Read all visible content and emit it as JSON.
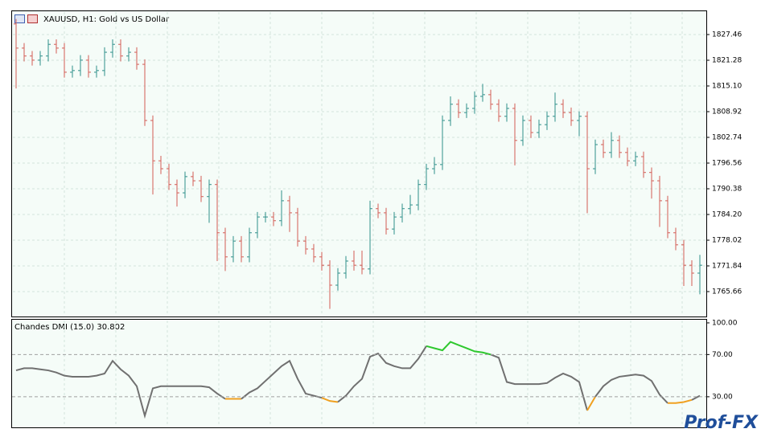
{
  "chart_data": [
    {
      "type": "ohlc",
      "title": "XAUUSD, H1:  Gold vs US Dollar",
      "open": [
        1830.0,
        1824.2,
        1822.3,
        1821.3,
        1822.3,
        1825.1,
        1824.2,
        1818.4,
        1818.8,
        1821.3,
        1818.4,
        1818.8,
        1823.2,
        1825.1,
        1822.3,
        1823.2,
        1820.3,
        1806.8,
        1797.1,
        1795.2,
        1791.4,
        1789.4,
        1793.3,
        1792.3,
        1788.5,
        1791.4,
        1779.8,
        1774.0,
        1777.8,
        1774.0,
        1779.8,
        1783.6,
        1783.6,
        1782.7,
        1787.5,
        1784.6,
        1777.8,
        1775.9,
        1774.0,
        1772.0,
        1767.2,
        1770.1,
        1773.0,
        1772.0,
        1771.1,
        1785.6,
        1784.6,
        1780.7,
        1783.6,
        1785.6,
        1786.5,
        1791.4,
        1795.2,
        1796.2,
        1806.8,
        1810.7,
        1808.7,
        1809.7,
        1812.6,
        1813.0,
        1810.7,
        1807.8,
        1809.7,
        1802.0,
        1806.8,
        1803.9,
        1805.8,
        1807.8,
        1810.7,
        1808.7,
        1806.8,
        1807.8,
        1795.2,
        1801.0,
        1799.1,
        1802.0,
        1799.1,
        1797.1,
        1798.1,
        1794.3,
        1792.3,
        1787.5,
        1779.8,
        1776.9,
        1772.0,
        1770.1
      ],
      "high": [
        1831.2,
        1825.4,
        1823.5,
        1823.5,
        1826.3,
        1826.3,
        1825.4,
        1820.0,
        1822.5,
        1822.5,
        1820.0,
        1824.4,
        1826.3,
        1826.3,
        1824.4,
        1824.4,
        1821.5,
        1808.0,
        1798.3,
        1796.4,
        1792.6,
        1794.5,
        1794.5,
        1793.5,
        1792.6,
        1792.6,
        1781.0,
        1779.0,
        1779.0,
        1781.0,
        1784.8,
        1784.8,
        1784.8,
        1790.0,
        1788.7,
        1785.8,
        1779.0,
        1777.1,
        1775.2,
        1773.2,
        1771.3,
        1774.2,
        1775.5,
        1775.5,
        1787.5,
        1786.8,
        1785.8,
        1784.8,
        1786.8,
        1788.9,
        1792.6,
        1796.4,
        1798.0,
        1808.0,
        1812.6,
        1811.9,
        1810.9,
        1813.8,
        1815.6,
        1814.2,
        1811.9,
        1810.9,
        1810.9,
        1808.0,
        1808.0,
        1807.0,
        1809.0,
        1813.5,
        1811.9,
        1809.9,
        1809.0,
        1809.0,
        1802.2,
        1802.2,
        1804.0,
        1803.2,
        1800.3,
        1799.3,
        1799.3,
        1795.5,
        1793.5,
        1788.7,
        1781.0,
        1778.1,
        1773.2,
        1774.5
      ],
      "low": [
        1814.5,
        1821.0,
        1820.0,
        1820.0,
        1821.0,
        1822.9,
        1817.1,
        1817.1,
        1817.5,
        1817.1,
        1817.1,
        1817.5,
        1821.9,
        1821.0,
        1821.0,
        1819.0,
        1805.5,
        1789.0,
        1793.9,
        1790.1,
        1786.1,
        1788.1,
        1791.0,
        1787.2,
        1782.2,
        1773.0,
        1770.6,
        1772.7,
        1772.7,
        1772.7,
        1778.5,
        1782.3,
        1781.4,
        1781.4,
        1780.0,
        1776.5,
        1774.6,
        1772.7,
        1770.7,
        1761.5,
        1765.9,
        1768.8,
        1770.7,
        1769.8,
        1769.8,
        1783.3,
        1779.4,
        1779.4,
        1782.3,
        1784.3,
        1785.2,
        1790.1,
        1793.9,
        1794.9,
        1805.5,
        1807.4,
        1807.4,
        1808.4,
        1811.3,
        1809.4,
        1806.5,
        1806.5,
        1796.0,
        1800.7,
        1802.6,
        1802.6,
        1804.5,
        1806.5,
        1807.4,
        1805.5,
        1803.0,
        1784.5,
        1793.9,
        1797.8,
        1797.8,
        1797.8,
        1795.8,
        1795.8,
        1793.0,
        1788.0,
        1781.2,
        1778.5,
        1775.6,
        1767.0,
        1767.0,
        1765.0
      ],
      "close": [
        1824.2,
        1822.3,
        1821.3,
        1822.3,
        1825.1,
        1824.2,
        1818.4,
        1818.8,
        1821.3,
        1818.4,
        1818.8,
        1823.2,
        1825.1,
        1822.3,
        1823.2,
        1820.3,
        1806.8,
        1797.1,
        1795.2,
        1791.4,
        1789.4,
        1793.3,
        1792.3,
        1788.5,
        1791.4,
        1779.8,
        1774.0,
        1777.8,
        1774.0,
        1779.8,
        1783.6,
        1783.6,
        1782.7,
        1787.5,
        1784.6,
        1777.8,
        1775.9,
        1774.0,
        1772.0,
        1767.2,
        1770.1,
        1773.0,
        1772.0,
        1771.1,
        1785.6,
        1784.6,
        1780.7,
        1783.6,
        1785.6,
        1786.5,
        1791.4,
        1795.2,
        1796.2,
        1806.8,
        1810.7,
        1808.7,
        1809.7,
        1812.6,
        1813.0,
        1810.7,
        1807.8,
        1809.7,
        1802.0,
        1806.8,
        1803.9,
        1805.8,
        1807.8,
        1810.7,
        1808.7,
        1806.8,
        1807.8,
        1795.2,
        1801.0,
        1799.1,
        1802.0,
        1799.1,
        1797.1,
        1798.1,
        1794.3,
        1792.3,
        1787.5,
        1779.8,
        1776.9,
        1772.0,
        1770.1,
        1772.0
      ],
      "up_color": "#2f8f8a",
      "down_color": "#d25c55",
      "ylim": [
        1759.67,
        1833.06
      ],
      "yticks": [
        1827.46,
        1821.28,
        {
          "value": 1815.1,
          "label": "1815.10"
        },
        1808.92,
        1802.74,
        1796.56,
        1790.38,
        {
          "value": 1784.2,
          "label": "1784.20"
        },
        1778.02,
        1771.84,
        1765.66
      ],
      "grid": true
    },
    {
      "type": "line",
      "title": "Chandes DMI (15.0) 30.802",
      "values": [
        55,
        57,
        57,
        56,
        55,
        53,
        50,
        49,
        49,
        49,
        50,
        52,
        64,
        56,
        50,
        40,
        12,
        38,
        40,
        40,
        40,
        40,
        40,
        40,
        39,
        33,
        28,
        28,
        28,
        34,
        38,
        45,
        52,
        59,
        64,
        47,
        33,
        31,
        29,
        26,
        25,
        31,
        40,
        47,
        68,
        71,
        62,
        59,
        57,
        57,
        66,
        78,
        76,
        74,
        82,
        79,
        76,
        73,
        72,
        70,
        67,
        44,
        42,
        42,
        42,
        42,
        43,
        48,
        52,
        49,
        44,
        17,
        30,
        40,
        46,
        49,
        50,
        51,
        50,
        45,
        32,
        24,
        24,
        25,
        27,
        31
      ],
      "color": "#707070",
      "up_color": "#2ec82e",
      "down_color": "#f0a020",
      "levels": [
        70,
        30
      ],
      "ylim": [
        1,
        103
      ],
      "yticks": [
        {
          "value": 100,
          "label": "100.00"
        },
        {
          "value": 70,
          "label": "70.00"
        },
        {
          "value": 30,
          "label": "30.00"
        }
      ],
      "grid": true
    }
  ],
  "watermark": "Prof-FX"
}
